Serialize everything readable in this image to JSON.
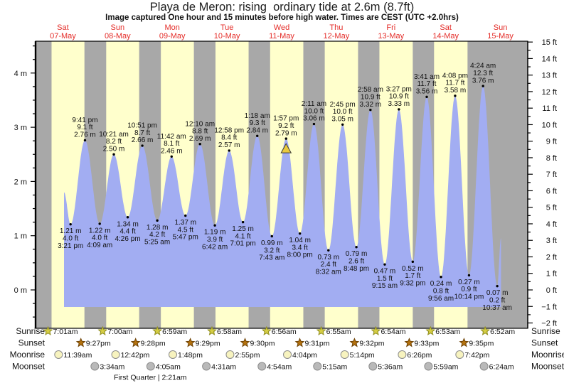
{
  "title": "Playa de Meron: rising  ordinary tide at 2.6m (8.7ft)",
  "subtitle": "Image captured One hour and 15 minutes before high water. Times are CEST (UTC +2.0hrs)",
  "chart_data": {
    "type": "area",
    "days": [
      {
        "dow": "Sat",
        "date": "07-May"
      },
      {
        "dow": "Sun",
        "date": "08-May"
      },
      {
        "dow": "Mon",
        "date": "09-May"
      },
      {
        "dow": "Tue",
        "date": "10-May"
      },
      {
        "dow": "Wed",
        "date": "11-May"
      },
      {
        "dow": "Thu",
        "date": "12-May"
      },
      {
        "dow": "Fri",
        "date": "13-May"
      },
      {
        "dow": "Sat",
        "date": "14-May"
      },
      {
        "dow": "Sun",
        "date": "15-May"
      }
    ],
    "y_axis_left": {
      "unit": "m",
      "labels": [
        0,
        1,
        2,
        3,
        4
      ],
      "minor_step": 0.25
    },
    "y_axis_right": {
      "unit": "ft",
      "labels": [
        -2,
        -1,
        0,
        1,
        2,
        3,
        4,
        5,
        6,
        7,
        8,
        9,
        10,
        11,
        12,
        13,
        14,
        15
      ],
      "minor_step": 0.5
    },
    "tides": [
      {
        "type": "start",
        "day": 0,
        "time": "12:30 pm",
        "m": "1.80"
      },
      {
        "type": "low",
        "day": 0,
        "time": "3:21 pm",
        "m": "1.21",
        "ft": "4.0"
      },
      {
        "type": "high",
        "day": 0,
        "time": "9:41 pm",
        "m": "2.76",
        "ft": "9.1"
      },
      {
        "type": "low",
        "day": 1,
        "time": "4:09 am",
        "m": "1.22",
        "ft": "4.0"
      },
      {
        "type": "high",
        "day": 1,
        "time": "10:21 am",
        "m": "2.50",
        "ft": "8.2"
      },
      {
        "type": "low",
        "day": 1,
        "time": "4:26 pm",
        "m": "1.34",
        "ft": "4.4"
      },
      {
        "type": "high",
        "day": 1,
        "time": "10:51 pm",
        "m": "2.66",
        "ft": "8.7"
      },
      {
        "type": "low",
        "day": 2,
        "time": "5:25 am",
        "m": "1.28",
        "ft": "4.2"
      },
      {
        "type": "high",
        "day": 2,
        "time": "11:42 am",
        "m": "2.46",
        "ft": "8.1"
      },
      {
        "type": "low",
        "day": 2,
        "time": "5:47 pm",
        "m": "1.37",
        "ft": "4.5"
      },
      {
        "type": "high",
        "day": 3,
        "time": "12:10 am",
        "m": "2.69",
        "ft": "8.8"
      },
      {
        "type": "low",
        "day": 3,
        "time": "6:42 am",
        "m": "1.19",
        "ft": "3.9"
      },
      {
        "type": "high",
        "day": 3,
        "time": "12:58 pm",
        "m": "2.57",
        "ft": "8.4"
      },
      {
        "type": "low",
        "day": 3,
        "time": "7:01 pm",
        "m": "1.25",
        "ft": "4.1"
      },
      {
        "type": "high",
        "day": 4,
        "time": "1:18 am",
        "m": "2.84",
        "ft": "9.3"
      },
      {
        "type": "low",
        "day": 4,
        "time": "7:43 am",
        "m": "0.99",
        "ft": "3.2"
      },
      {
        "type": "high",
        "day": 4,
        "time": "1:57 pm",
        "m": "2.79",
        "ft": "9.2",
        "now": true
      },
      {
        "type": "low",
        "day": 4,
        "time": "8:00 pm",
        "m": "1.04",
        "ft": "3.4"
      },
      {
        "type": "high",
        "day": 5,
        "time": "2:11 am",
        "m": "3.06",
        "ft": "10.0"
      },
      {
        "type": "low",
        "day": 5,
        "time": "8:32 am",
        "m": "0.73",
        "ft": "2.4"
      },
      {
        "type": "high",
        "day": 5,
        "time": "2:45 pm",
        "m": "3.05",
        "ft": "10.0"
      },
      {
        "type": "low",
        "day": 5,
        "time": "8:48 pm",
        "m": "0.79",
        "ft": "2.6"
      },
      {
        "type": "high",
        "day": 6,
        "time": "2:58 am",
        "m": "3.32",
        "ft": "10.9"
      },
      {
        "type": "low",
        "day": 6,
        "time": "9:15 am",
        "m": "0.47",
        "ft": "1.5"
      },
      {
        "type": "high",
        "day": 6,
        "time": "3:27 pm",
        "m": "3.33",
        "ft": "10.9"
      },
      {
        "type": "low",
        "day": 6,
        "time": "9:32 pm",
        "m": "0.52",
        "ft": "1.7"
      },
      {
        "type": "high",
        "day": 7,
        "time": "3:41 am",
        "m": "3.56",
        "ft": "11.7"
      },
      {
        "type": "low",
        "day": 7,
        "time": "9:56 am",
        "m": "0.24",
        "ft": "0.8"
      },
      {
        "type": "high",
        "day": 7,
        "time": "4:08 pm",
        "m": "3.58",
        "ft": "11.7"
      },
      {
        "type": "low",
        "day": 7,
        "time": "10:14 pm",
        "m": "0.27",
        "ft": "0.9"
      },
      {
        "type": "high",
        "day": 8,
        "time": "4:24 am",
        "m": "3.76",
        "ft": "12.3"
      },
      {
        "type": "low",
        "day": 8,
        "time": "10:37 am",
        "m": "0.07",
        "ft": "0.2"
      },
      {
        "type": "end",
        "day": 8,
        "time": "12:15 pm",
        "m": "0.95"
      }
    ],
    "astro_rows": [
      {
        "id": "sunrise",
        "label": "Sunrise",
        "icon": "star-yellow",
        "events": [
          {
            "day": 0,
            "time": "7:01am"
          },
          {
            "day": 1,
            "time": "7:00am"
          },
          {
            "day": 2,
            "time": "6:59am"
          },
          {
            "day": 3,
            "time": "6:58am"
          },
          {
            "day": 4,
            "time": "6:56am"
          },
          {
            "day": 5,
            "time": "6:55am"
          },
          {
            "day": 6,
            "time": "6:54am"
          },
          {
            "day": 7,
            "time": "6:53am"
          },
          {
            "day": 8,
            "time": "6:52am"
          }
        ]
      },
      {
        "id": "sunset",
        "label": "Sunset",
        "icon": "star-orange",
        "events": [
          {
            "day": 0,
            "time": "9:27pm"
          },
          {
            "day": 1,
            "time": "9:28pm"
          },
          {
            "day": 2,
            "time": "9:29pm"
          },
          {
            "day": 3,
            "time": "9:30pm"
          },
          {
            "day": 4,
            "time": "9:31pm"
          },
          {
            "day": 5,
            "time": "9:32pm"
          },
          {
            "day": 6,
            "time": "9:33pm"
          },
          {
            "day": 7,
            "time": "9:35pm"
          }
        ]
      },
      {
        "id": "moonrise",
        "label": "Moonrise",
        "icon": "disc-pale",
        "events": [
          {
            "day": 0,
            "time": "11:39am"
          },
          {
            "day": 1,
            "time": "12:42pm"
          },
          {
            "day": 2,
            "time": "1:48pm"
          },
          {
            "day": 3,
            "time": "2:55pm"
          },
          {
            "day": 4,
            "time": "4:04pm"
          },
          {
            "day": 5,
            "time": "5:14pm"
          },
          {
            "day": 6,
            "time": "6:26pm"
          },
          {
            "day": 7,
            "time": "7:42pm"
          }
        ]
      },
      {
        "id": "moonset",
        "label": "Moonset",
        "icon": "disc-gray",
        "events": [
          {
            "day": 1,
            "time": "3:34am"
          },
          {
            "day": 2,
            "time": "4:05am"
          },
          {
            "day": 3,
            "time": "4:31am"
          },
          {
            "day": 4,
            "time": "4:54am"
          },
          {
            "day": 5,
            "time": "5:15am"
          },
          {
            "day": 6,
            "time": "5:36am"
          },
          {
            "day": 7,
            "time": "5:59am"
          },
          {
            "day": 8,
            "time": "6:24am"
          }
        ]
      }
    ],
    "moon_phase_note": {
      "text": "First Quarter | 2:21am",
      "day": 2,
      "time": "2:21am"
    }
  },
  "colors": {
    "night_band": "#a8a8a8",
    "day_band": "#ffffcc",
    "water": "#a2adf2",
    "day_label": "#e42c28",
    "sunrise_star": "#d6ce44",
    "sunrise_star_edge": "#8f8d1e",
    "sunset_star": "#b4720e",
    "sunset_star_edge": "#6d4206",
    "moonrise_disc": "#f7f3bf",
    "moonset_disc": "#b9b9b9",
    "disc_edge": "#8c8c8c",
    "now_marker": "#e9c93d",
    "axis": "#000000",
    "label_text": "#111111"
  }
}
